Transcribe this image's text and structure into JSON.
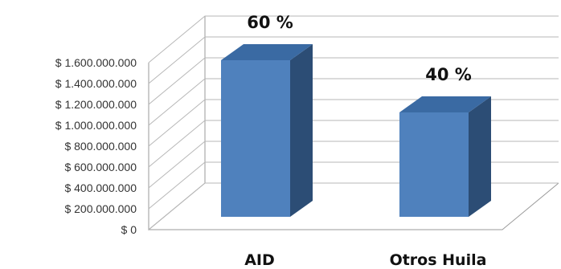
{
  "chart_data": {
    "type": "bar",
    "title": "",
    "xlabel": "",
    "ylabel": "",
    "categories": [
      "AID",
      "Otros Huila"
    ],
    "values": [
      1500000000,
      1000000000
    ],
    "data_labels": [
      "60 %",
      "40 %"
    ],
    "ylim": [
      0,
      1600000000
    ],
    "yticks": [
      0,
      200000000,
      400000000,
      600000000,
      800000000,
      1000000000,
      1200000000,
      1400000000,
      1600000000
    ],
    "ytick_labels": [
      "$ 0",
      "$ 200.000.000",
      "$ 400.000.000",
      "$ 600.000.000",
      "$ 800.000.000",
      "$ 1.000.000.000",
      "$ 1.200.000.000",
      "$ 1.400.000.000",
      "$ 1.600.000.000"
    ],
    "grid": true,
    "three_d": true,
    "colors": {
      "bar_front": "#4f81bd",
      "bar_side": "#2c4d75",
      "bar_top": "#3a6aa3"
    }
  }
}
